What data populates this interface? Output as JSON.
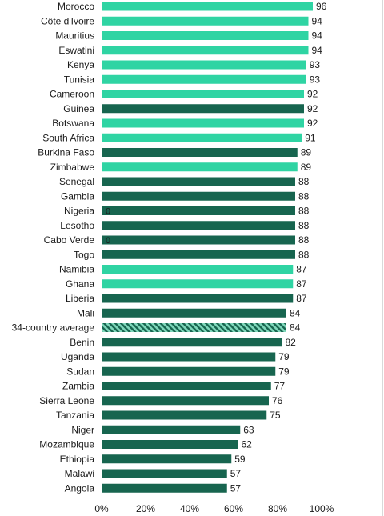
{
  "chart_data": {
    "type": "bar",
    "orientation": "horizontal",
    "title": "",
    "xlabel": "",
    "ylabel": "",
    "xlim": [
      0,
      100
    ],
    "x_ticks": [
      "0%",
      "20%",
      "40%",
      "60%",
      "80%",
      "100%"
    ],
    "x_tick_values": [
      0,
      20,
      40,
      60,
      80,
      100
    ],
    "grid": false,
    "legend": "none",
    "colors": {
      "light": "#2fd4a3",
      "dark": "#17654f",
      "hatch_a": "#17654f",
      "hatch_b": "#7fd8bb"
    },
    "categories": [
      "Morocco",
      "Côte d'Ivoire",
      "Mauritius",
      "Eswatini",
      "Kenya",
      "Tunisia",
      "Cameroon",
      "Guinea",
      "Botswana",
      "South Africa",
      "Burkina Faso",
      "Zimbabwe",
      "Senegal",
      "Gambia",
      "Nigeria",
      "Lesotho",
      "Cabo Verde",
      "Togo",
      "Namibia",
      "Ghana",
      "Liberia",
      "Mali",
      "34-country average",
      "Benin",
      "Uganda",
      "Sudan",
      "Zambia",
      "Sierra Leone",
      "Tanzania",
      "Niger",
      "Mozambique",
      "Ethiopia",
      "Malawi",
      "Angola"
    ],
    "values": [
      96,
      94,
      94,
      94,
      93,
      93,
      92,
      92,
      92,
      91,
      89,
      89,
      88,
      88,
      88,
      88,
      88,
      88,
      87,
      87,
      87,
      84,
      84,
      82,
      79,
      79,
      77,
      76,
      75,
      63,
      62,
      59,
      57,
      57
    ],
    "value_labels": [
      "96",
      "94",
      "94",
      "94",
      "93",
      "93",
      "92",
      "92",
      "92",
      "91",
      "89",
      "89",
      "88",
      "88",
      "88",
      "88",
      "88",
      "88",
      "87",
      "87",
      "87",
      "84",
      "84",
      "82",
      "79",
      "79",
      "77",
      "76",
      "75",
      "63",
      "62",
      "59",
      "57",
      "57"
    ],
    "bar_styles": [
      "light",
      "light",
      "light",
      "light",
      "light",
      "light",
      "light",
      "dark",
      "light",
      "light",
      "dark",
      "light",
      "dark",
      "dark",
      "dark",
      "dark",
      "dark",
      "dark",
      "light",
      "light",
      "dark",
      "dark",
      "hatched",
      "dark",
      "dark",
      "dark",
      "dark",
      "dark",
      "dark",
      "dark",
      "dark",
      "dark",
      "dark",
      "dark"
    ],
    "annotations": [
      {
        "category_index": 14,
        "text": "0"
      },
      {
        "category_index": 16,
        "text": "0"
      }
    ]
  }
}
